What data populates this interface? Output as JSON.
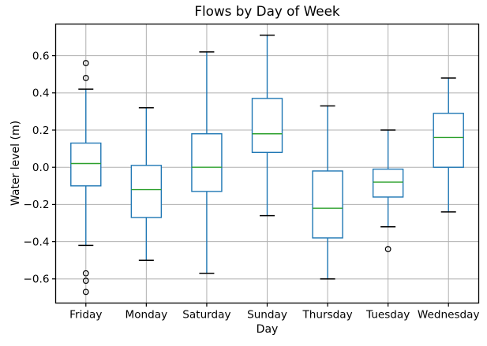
{
  "title": "Flows by Day of Week",
  "chart_data": {
    "type": "boxplot",
    "title": "Flows by Day of Week",
    "xlabel": "Day",
    "ylabel": "Water level (m)",
    "categories": [
      "Friday",
      "Monday",
      "Saturday",
      "Sunday",
      "Thursday",
      "Tuesday",
      "Wednesday"
    ],
    "series": [
      {
        "name": "Friday",
        "whisker_low": -0.42,
        "q1": -0.1,
        "median": 0.02,
        "q3": 0.13,
        "whisker_high": 0.42,
        "outliers": [
          0.56,
          0.48,
          -0.57,
          -0.61,
          -0.67
        ]
      },
      {
        "name": "Monday",
        "whisker_low": -0.5,
        "q1": -0.27,
        "median": -0.12,
        "q3": 0.01,
        "whisker_high": 0.32,
        "outliers": []
      },
      {
        "name": "Saturday",
        "whisker_low": -0.57,
        "q1": -0.13,
        "median": 0.0,
        "q3": 0.18,
        "whisker_high": 0.62,
        "outliers": []
      },
      {
        "name": "Sunday",
        "whisker_low": -0.26,
        "q1": 0.08,
        "median": 0.18,
        "q3": 0.37,
        "whisker_high": 0.71,
        "outliers": []
      },
      {
        "name": "Thursday",
        "whisker_low": -0.6,
        "q1": -0.38,
        "median": -0.22,
        "q3": -0.02,
        "whisker_high": 0.33,
        "outliers": []
      },
      {
        "name": "Tuesday",
        "whisker_low": -0.32,
        "q1": -0.16,
        "median": -0.08,
        "q3": -0.01,
        "whisker_high": 0.2,
        "outliers": [
          -0.44
        ]
      },
      {
        "name": "Wednesday",
        "whisker_low": -0.24,
        "q1": 0.0,
        "median": 0.16,
        "q3": 0.29,
        "whisker_high": 0.48,
        "outliers": []
      }
    ],
    "yticks": [
      0.6,
      0.4,
      0.2,
      0.0,
      -0.2,
      -0.4,
      -0.6
    ],
    "ytick_labels": [
      "0.6",
      "0.4",
      "0.2",
      "0.0",
      "−0.2",
      "−0.4",
      "−0.6"
    ],
    "ylim": [
      -0.73,
      0.77
    ],
    "grid": true,
    "legend": "none",
    "colors": {
      "box": "#1f77b4",
      "whisker": "#1f77b4",
      "median": "#2ca02c",
      "cap": "#000000",
      "outlier": "#000000",
      "grid": "#b0b0b0",
      "axis": "#000000",
      "background": "#ffffff"
    }
  }
}
